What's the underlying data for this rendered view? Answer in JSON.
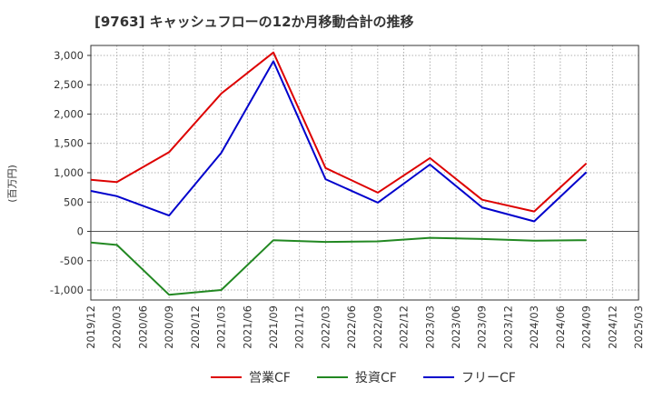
{
  "chart_data": {
    "type": "line",
    "title": "[9763]  キャッシュフローの12か月移動合計の推移",
    "ylabel": "(百万円)",
    "xlabel": "",
    "ylim": [
      -1170,
      3170
    ],
    "yticks": [
      3000,
      2500,
      2000,
      1500,
      1000,
      500,
      0,
      -500,
      -1000
    ],
    "ytick_labels": [
      "3,000",
      "2,500",
      "2,000",
      "1,500",
      "1,000",
      "500",
      "0",
      "-500",
      "-1,000"
    ],
    "x": [
      "2019/12",
      "2020/03",
      "2020/06",
      "2020/09",
      "2020/12",
      "2021/03",
      "2021/06",
      "2021/09",
      "2021/12",
      "2022/03",
      "2022/06",
      "2022/09",
      "2022/12",
      "2023/03",
      "2023/06",
      "2023/09",
      "2023/12",
      "2024/03",
      "2024/06",
      "2024/09",
      "2024/12",
      "2025/03"
    ],
    "grid": true,
    "legend_position": "bottom-center",
    "series": [
      {
        "name": "営業CF",
        "color": "#dd0000",
        "values": [
          880,
          840,
          null,
          1350,
          null,
          2350,
          null,
          3050,
          null,
          1080,
          null,
          660,
          null,
          1250,
          null,
          540,
          null,
          340,
          null,
          1160,
          null,
          null
        ]
      },
      {
        "name": "投資CF",
        "color": "#228822",
        "values": [
          -190,
          -230,
          null,
          -1080,
          null,
          -1000,
          null,
          -150,
          null,
          -180,
          null,
          -170,
          null,
          -110,
          null,
          -130,
          null,
          -160,
          null,
          -150,
          null,
          null
        ]
      },
      {
        "name": "フリーCF",
        "color": "#0000cc",
        "values": [
          690,
          600,
          null,
          270,
          null,
          1340,
          null,
          2900,
          null,
          890,
          null,
          490,
          null,
          1140,
          null,
          410,
          null,
          170,
          null,
          1010,
          null,
          null
        ]
      }
    ]
  }
}
